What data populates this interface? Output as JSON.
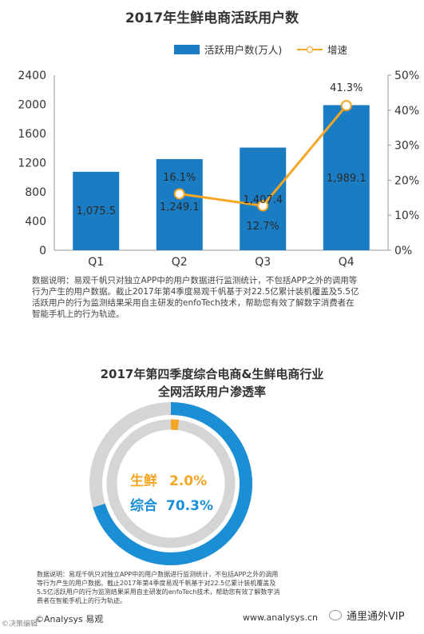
{
  "chart_data": [
    {
      "type": "bar",
      "title": "2017年生鲜电商活跃用户数",
      "categories": [
        "Q1",
        "Q2",
        "Q3",
        "Q4"
      ],
      "series": [
        {
          "name": "活跃用户数(万人)",
          "type": "bar",
          "axis": "left",
          "values": [
            1075.5,
            1249.1,
            1407.4,
            1989.1
          ],
          "labels": [
            "1,075.5",
            "1,249.1",
            "1,407.4",
            "1,989.1"
          ]
        },
        {
          "name": "增速",
          "type": "line",
          "axis": "right",
          "values": [
            null,
            16.1,
            12.7,
            41.3
          ],
          "labels": [
            "",
            "16.1%",
            "12.7%",
            "41.3%"
          ]
        }
      ],
      "ylim": [
        0,
        2400
      ],
      "y_ticks": [
        "0",
        "400",
        "800",
        "1200",
        "1600",
        "2000",
        "2400"
      ],
      "y2lim": [
        0,
        50
      ],
      "y2_ticks": [
        "0%",
        "10%",
        "20%",
        "30%",
        "40%",
        "50%"
      ],
      "legend": "top",
      "grid": false,
      "colors": {
        "bar": "#1a7cc2",
        "line": "#f5a623"
      }
    },
    {
      "type": "pie",
      "title": [
        "2017年第四季度综合电商&生鲜电商行业",
        "全网活跃用户渗透率"
      ],
      "rings": [
        {
          "name": "综合",
          "value": 70.3,
          "label": "70.3%",
          "color": "#1a8fd6"
        },
        {
          "name": "生鲜",
          "value": 2.0,
          "label": "2.0%",
          "color": "#f5a623"
        }
      ],
      "remainder_color": "#d5d5d5"
    }
  ],
  "notes": {
    "chart1": [
      "数据说明：易观千帆只对独立APP中的用户数据进行监测统计，不包括APP之外的调用等",
      "行为产生的用户数据。截止2017年第4季度易观千帆基于对22.5亿累计装机覆盖及5.5亿",
      "活跃用户的行为监测结果采用自主研发的enfoTech技术，帮助您有效了解数字消费者在",
      "智能手机上的行为轨迹。"
    ],
    "chart2": [
      "数据说明：易观千帆只对独立APP中的用户数据进行监测统计，不包括APP之外的调用",
      "等行为产生的用户数据。截止2017年第4季度易观千帆基于对22.5亿累计装机覆盖及",
      "5.5亿活跃用户的行为监测结果采用自主研发的enfoTech技术，帮助您有效了解数字消",
      "费者在智能手机上的行为轨迹。"
    ]
  },
  "footer": {
    "brand": "©Analysys 易观",
    "url": "www.analysys.cn",
    "account": "通里通外VIP",
    "corner": "©决策编辑"
  }
}
